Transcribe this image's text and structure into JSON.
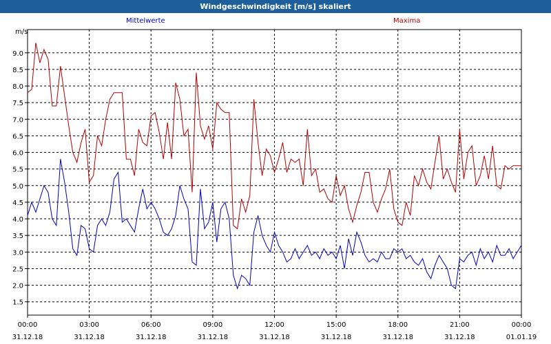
{
  "window": {
    "title": "Windgeschwindigkeit [m/s] skaliert"
  },
  "colors": {
    "titlebar": "#1d5f9a",
    "mean": "#0000c0",
    "max": "#b00000",
    "grid": "#000000"
  },
  "chart_data": {
    "type": "line",
    "title": "Windgeschwindigkeit [m/s] skaliert",
    "ylabel": "m/s",
    "xlabel": "",
    "ylim": [
      1.1,
      9.7
    ],
    "xlim": [
      0,
      24
    ],
    "grid": true,
    "y_ticks": [
      "1.5",
      "2.0",
      "2.5",
      "3.0",
      "3.5",
      "4.0",
      "4.5",
      "5.0",
      "5.5",
      "6.0",
      "6.5",
      "7.0",
      "7.5",
      "8.0",
      "8.5",
      "9.0"
    ],
    "x_ticks": [
      {
        "time": "00:00",
        "date": "31.12.18"
      },
      {
        "time": "03:00",
        "date": "31.12.18"
      },
      {
        "time": "06:00",
        "date": "31.12.18"
      },
      {
        "time": "09:00",
        "date": "31.12.18"
      },
      {
        "time": "12:00",
        "date": "31.12.18"
      },
      {
        "time": "15:00",
        "date": "31.12.18"
      },
      {
        "time": "18:00",
        "date": "31.12.18"
      },
      {
        "time": "21:00",
        "date": "31.12.18"
      },
      {
        "time": "00:00",
        "date": "01.01.19"
      }
    ],
    "series": [
      {
        "name": "Mittelwerte",
        "color": "#0000c0",
        "x": [
          0,
          0.2,
          0.4,
          0.6,
          0.8,
          1.0,
          1.2,
          1.4,
          1.6,
          1.8,
          2.0,
          2.2,
          2.4,
          2.6,
          2.8,
          3.0,
          3.2,
          3.4,
          3.6,
          3.8,
          4.0,
          4.2,
          4.4,
          4.6,
          4.8,
          5.0,
          5.2,
          5.4,
          5.6,
          5.8,
          6.0,
          6.2,
          6.4,
          6.6,
          6.8,
          7.0,
          7.2,
          7.4,
          7.6,
          7.8,
          8.0,
          8.2,
          8.4,
          8.6,
          8.8,
          9.0,
          9.2,
          9.4,
          9.6,
          9.8,
          10.0,
          10.2,
          10.4,
          10.6,
          10.8,
          11.0,
          11.2,
          11.4,
          11.6,
          11.8,
          12.0,
          12.2,
          12.4,
          12.6,
          12.8,
          13.0,
          13.2,
          13.4,
          13.6,
          13.8,
          14.0,
          14.2,
          14.4,
          14.6,
          14.8,
          15.0,
          15.2,
          15.4,
          15.6,
          15.8,
          16.0,
          16.2,
          16.4,
          16.6,
          16.8,
          17.0,
          17.2,
          17.4,
          17.6,
          17.8,
          18.0,
          18.2,
          18.4,
          18.6,
          18.8,
          19.0,
          19.2,
          19.4,
          19.6,
          19.8,
          20.0,
          20.2,
          20.4,
          20.6,
          20.8,
          21.0,
          21.2,
          21.4,
          21.6,
          21.8,
          22.0,
          22.2,
          22.4,
          22.6,
          22.8,
          23.0,
          23.2,
          23.4,
          23.6,
          23.8,
          24.0
        ],
        "values": [
          4.1,
          4.5,
          4.2,
          4.6,
          5.0,
          4.8,
          4.0,
          3.8,
          5.8,
          5.1,
          4.2,
          3.1,
          2.9,
          3.8,
          3.7,
          3.1,
          3.0,
          3.8,
          4.0,
          3.8,
          4.2,
          5.2,
          5.4,
          3.9,
          4.0,
          3.8,
          3.6,
          4.3,
          4.9,
          4.3,
          4.5,
          4.3,
          4.0,
          3.6,
          3.5,
          3.7,
          4.1,
          5.0,
          4.6,
          4.3,
          2.7,
          2.6,
          4.9,
          3.7,
          3.9,
          4.5,
          3.3,
          4.3,
          4.5,
          4.0,
          2.3,
          1.9,
          2.3,
          2.2,
          2.0,
          3.6,
          4.1,
          3.5,
          3.2,
          3.0,
          3.6,
          3.2,
          3.0,
          2.7,
          2.8,
          3.1,
          2.8,
          3.0,
          3.2,
          2.9,
          3.0,
          2.8,
          3.1,
          2.9,
          3.0,
          2.8,
          3.2,
          2.5,
          3.4,
          2.9,
          3.6,
          3.3,
          2.9,
          2.7,
          2.8,
          2.7,
          3.0,
          2.8,
          2.8,
          3.1,
          3.0,
          3.1,
          2.8,
          2.9,
          2.7,
          2.6,
          2.8,
          2.4,
          2.2,
          2.6,
          2.9,
          2.7,
          2.5,
          2.0,
          1.9,
          2.8,
          2.7,
          2.9,
          3.0,
          2.6,
          3.1,
          2.8,
          3.0,
          2.7,
          3.2,
          2.9,
          2.9,
          3.1,
          2.8,
          3.0,
          3.2
        ],
        "values_full": [
          4.1,
          4.5,
          4.2,
          4.6,
          5.0,
          4.8,
          4.0,
          3.8,
          5.8,
          5.1,
          4.2,
          3.1,
          2.9,
          3.8,
          3.7,
          3.1,
          3.0,
          3.8,
          4.0,
          3.8,
          4.2,
          5.2,
          5.4,
          3.9,
          4.0,
          3.8,
          3.6,
          4.3,
          4.9,
          4.3,
          4.5,
          4.3,
          4.0,
          3.6,
          3.5,
          3.7,
          4.1,
          5.0,
          4.6,
          4.3,
          2.7,
          2.6,
          4.9,
          3.7,
          3.9,
          4.5,
          3.3,
          4.3,
          4.5,
          4.0,
          2.3,
          1.9,
          2.3,
          2.2,
          2.0,
          3.6,
          4.1,
          3.5,
          3.2,
          3.0,
          3.6,
          3.2,
          3.0,
          2.7,
          2.8,
          3.1,
          2.8,
          3.0,
          3.2,
          2.9,
          3.0,
          2.8,
          3.1,
          2.9,
          3.0,
          2.8,
          3.2,
          2.5,
          3.4,
          2.9,
          3.6,
          3.3,
          2.9,
          2.7,
          2.8,
          2.7,
          3.0,
          2.8,
          2.8,
          3.1,
          3.0,
          3.1,
          2.8,
          2.9,
          2.7,
          2.6,
          2.8,
          2.4,
          2.2,
          2.6,
          2.9,
          2.7,
          2.5,
          2.0,
          1.9,
          2.8,
          2.7,
          2.9,
          3.0,
          2.6,
          3.1,
          2.8,
          3.0,
          2.7,
          3.2,
          2.9,
          2.9,
          3.1,
          2.8,
          3.0,
          3.2
        ]
      },
      {
        "name": "Maxima",
        "color": "#b00000",
        "x": [
          0,
          0.2,
          0.4,
          0.6,
          0.8,
          1.0,
          1.2,
          1.4,
          1.6,
          1.8,
          2.0,
          2.2,
          2.4,
          2.6,
          2.8,
          3.0,
          3.2,
          3.4,
          3.6,
          3.8,
          4.0,
          4.2,
          4.4,
          4.6,
          4.8,
          5.0,
          5.2,
          5.4,
          5.6,
          5.8,
          6.0,
          6.2,
          6.4,
          6.6,
          6.8,
          7.0,
          7.2,
          7.4,
          7.6,
          7.8,
          8.0,
          8.2,
          8.4,
          8.6,
          8.8,
          9.0,
          9.2,
          9.4,
          9.6,
          9.8,
          10.0,
          10.2,
          10.4,
          10.6,
          10.8,
          11.0,
          11.2,
          11.4,
          11.6,
          11.8,
          12.0,
          12.2,
          12.4,
          12.6,
          12.8,
          13.0,
          13.2,
          13.4,
          13.6,
          13.8,
          14.0,
          14.2,
          14.4,
          14.6,
          14.8,
          15.0,
          15.2,
          15.4,
          15.6,
          15.8,
          16.0,
          16.2,
          16.4,
          16.6,
          16.8,
          17.0,
          17.2,
          17.4,
          17.6,
          17.8,
          18.0,
          18.2,
          18.4,
          18.6,
          18.8,
          19.0,
          19.2,
          19.4,
          19.6,
          19.8,
          20.0,
          20.2,
          20.4,
          20.6,
          20.8,
          21.0,
          21.2,
          21.4,
          21.6,
          21.8,
          22.0,
          22.2,
          22.4,
          22.6,
          22.8,
          23.0,
          23.2,
          23.4,
          23.6,
          23.8,
          24.0
        ],
        "values": [
          7.8,
          7.9,
          9.3,
          8.7,
          9.1,
          8.8,
          7.4,
          7.4,
          8.6,
          7.7,
          6.8,
          6.0,
          5.7,
          6.3,
          6.7,
          5.1,
          5.3,
          6.5,
          6.2,
          7.0,
          7.6,
          7.8,
          7.8,
          7.8,
          5.8,
          5.8,
          5.3,
          6.7,
          6.3,
          6.2,
          7.1,
          7.2,
          6.6,
          5.8,
          6.9,
          5.8,
          8.1,
          7.6,
          6.5,
          6.7,
          4.8,
          8.4,
          6.8,
          6.4,
          6.8,
          6.1,
          7.5,
          7.3,
          7.2,
          7.2,
          3.8,
          3.7,
          4.6,
          4.2,
          4.7,
          7.6,
          6.3,
          5.3,
          6.1,
          5.9,
          5.4,
          5.8,
          6.3,
          5.4,
          5.8,
          5.7,
          5.8,
          5.0,
          6.7,
          5.3,
          5.5,
          4.8,
          4.9,
          4.6,
          4.5,
          5.3,
          4.7,
          5.0,
          4.3,
          3.9,
          4.4,
          4.8,
          5.4,
          5.4,
          4.5,
          4.2,
          4.6,
          4.9,
          5.5,
          4.3,
          3.9,
          3.8,
          4.5,
          4.1,
          5.3,
          5.0,
          5.5,
          5.1,
          4.9,
          5.7,
          6.5,
          5.2,
          5.5,
          5.1,
          4.8,
          6.7,
          5.2,
          6.0,
          6.2,
          5.0,
          5.3,
          5.9,
          5.2,
          6.2,
          5.0,
          4.9,
          5.6,
          5.5,
          5.6,
          5.6,
          5.6
        ]
      }
    ]
  }
}
